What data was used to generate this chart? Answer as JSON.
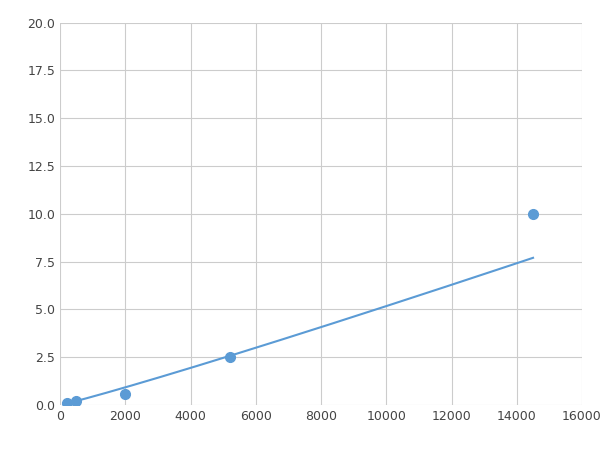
{
  "x": [
    200,
    500,
    2000,
    5200,
    14500
  ],
  "y": [
    0.1,
    0.2,
    0.6,
    2.5,
    10.0
  ],
  "line_color": "#5B9BD5",
  "marker_color": "#5B9BD5",
  "marker_size": 7,
  "line_width": 1.5,
  "xlim": [
    0,
    16000
  ],
  "ylim": [
    0,
    20
  ],
  "xticks": [
    0,
    2000,
    4000,
    6000,
    8000,
    10000,
    12000,
    14000,
    16000
  ],
  "yticks": [
    0.0,
    2.5,
    5.0,
    7.5,
    10.0,
    12.5,
    15.0,
    17.5,
    20.0
  ],
  "grid_color": "#CCCCCC",
  "background_color": "#FFFFFF",
  "fig_width": 6.0,
  "fig_height": 4.5,
  "dpi": 100,
  "power_a": 7e-06,
  "power_b": 1.62
}
